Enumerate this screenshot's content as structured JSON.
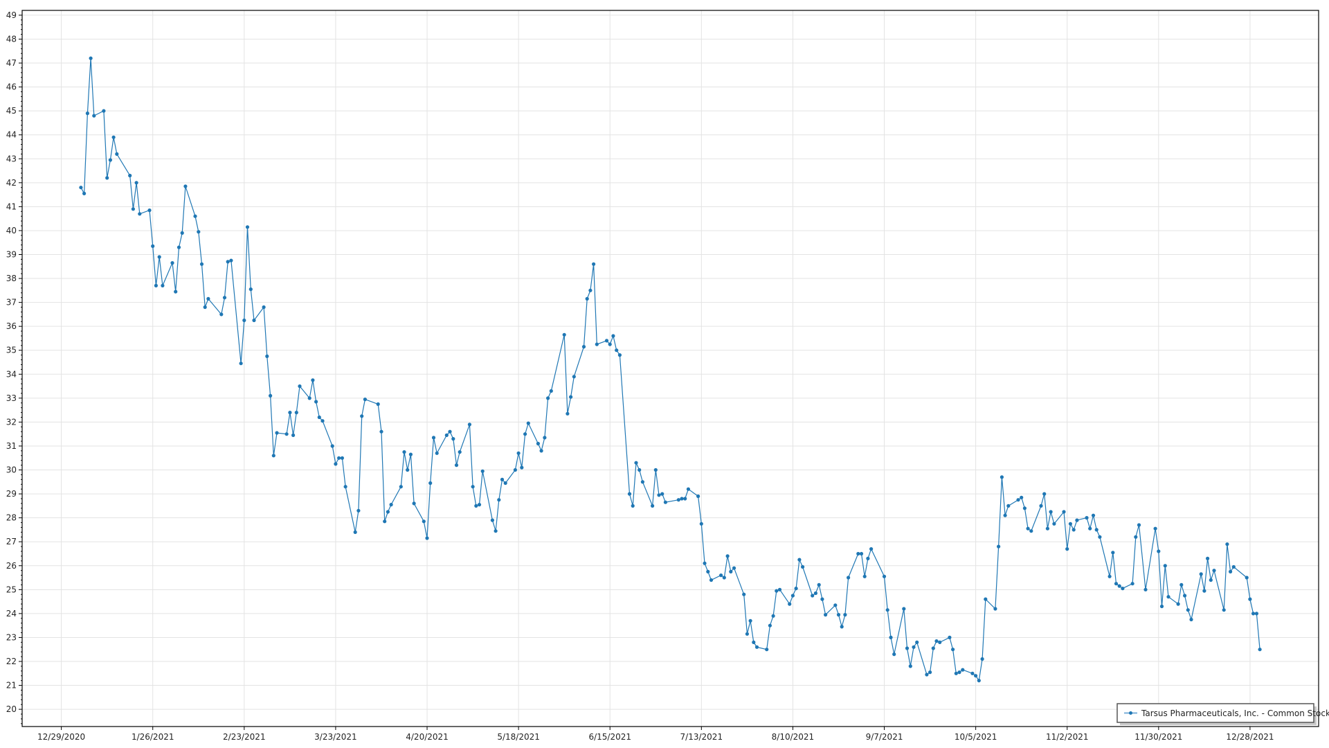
{
  "chart_data": {
    "type": "line",
    "title": "",
    "xlabel": "",
    "ylabel": "",
    "grid": true,
    "legend_position": "bottom-right",
    "xlim": [
      "2020-12-17",
      "2022-01-18"
    ],
    "ylim": [
      19.28,
      49.2
    ],
    "x_ticks": [
      "12/29/2020",
      "1/26/2021",
      "2/23/2021",
      "3/23/2021",
      "4/20/2021",
      "5/18/2021",
      "6/15/2021",
      "7/13/2021",
      "8/10/2021",
      "9/7/2021",
      "10/5/2021",
      "11/2/2021",
      "11/30/2021",
      "12/28/2021"
    ],
    "y_ticks": [
      20,
      21,
      22,
      23,
      24,
      25,
      26,
      27,
      28,
      29,
      30,
      31,
      32,
      33,
      34,
      35,
      36,
      37,
      38,
      39,
      40,
      41,
      42,
      43,
      44,
      45,
      46,
      47,
      48,
      49
    ],
    "colors": {
      "series": "#1f77b4",
      "grid": "#e3e3e3",
      "axis": "#000000"
    },
    "series": [
      {
        "name": "Tarsus Pharmaceuticals, Inc. - Common Stock",
        "marker": "circle",
        "points": [
          [
            "2021-01-04",
            41.8
          ],
          [
            "2021-01-05",
            41.55
          ],
          [
            "2021-01-06",
            44.9
          ],
          [
            "2021-01-07",
            47.2
          ],
          [
            "2021-01-08",
            44.8
          ],
          [
            "2021-01-11",
            45.0
          ],
          [
            "2021-01-12",
            42.2
          ],
          [
            "2021-01-13",
            42.95
          ],
          [
            "2021-01-14",
            43.9
          ],
          [
            "2021-01-15",
            43.2
          ],
          [
            "2021-01-19",
            42.3
          ],
          [
            "2021-01-20",
            40.9
          ],
          [
            "2021-01-21",
            42.0
          ],
          [
            "2021-01-22",
            40.7
          ],
          [
            "2021-01-25",
            40.85
          ],
          [
            "2021-01-26",
            39.35
          ],
          [
            "2021-01-27",
            37.7
          ],
          [
            "2021-01-28",
            38.9
          ],
          [
            "2021-01-29",
            37.7
          ],
          [
            "2021-02-01",
            38.65
          ],
          [
            "2021-02-02",
            37.45
          ],
          [
            "2021-02-03",
            39.3
          ],
          [
            "2021-02-04",
            39.9
          ],
          [
            "2021-02-05",
            41.85
          ],
          [
            "2021-02-08",
            40.6
          ],
          [
            "2021-02-09",
            39.95
          ],
          [
            "2021-02-10",
            38.6
          ],
          [
            "2021-02-11",
            36.8
          ],
          [
            "2021-02-12",
            37.15
          ],
          [
            "2021-02-16",
            36.5
          ],
          [
            "2021-02-17",
            37.2
          ],
          [
            "2021-02-18",
            38.7
          ],
          [
            "2021-02-19",
            38.75
          ],
          [
            "2021-02-22",
            34.45
          ],
          [
            "2021-02-23",
            36.25
          ],
          [
            "2021-02-24",
            40.15
          ],
          [
            "2021-02-25",
            37.55
          ],
          [
            "2021-02-26",
            36.25
          ],
          [
            "2021-03-01",
            36.8
          ],
          [
            "2021-03-02",
            34.75
          ],
          [
            "2021-03-03",
            33.1
          ],
          [
            "2021-03-04",
            30.6
          ],
          [
            "2021-03-05",
            31.55
          ],
          [
            "2021-03-08",
            31.5
          ],
          [
            "2021-03-09",
            32.4
          ],
          [
            "2021-03-10",
            31.45
          ],
          [
            "2021-03-11",
            32.4
          ],
          [
            "2021-03-12",
            33.5
          ],
          [
            "2021-03-15",
            33.0
          ],
          [
            "2021-03-16",
            33.75
          ],
          [
            "2021-03-17",
            32.85
          ],
          [
            "2021-03-18",
            32.2
          ],
          [
            "2021-03-19",
            32.05
          ],
          [
            "2021-03-22",
            31.0
          ],
          [
            "2021-03-23",
            30.25
          ],
          [
            "2021-03-24",
            30.5
          ],
          [
            "2021-03-25",
            30.5
          ],
          [
            "2021-03-26",
            29.3
          ],
          [
            "2021-03-29",
            27.4
          ],
          [
            "2021-03-30",
            28.3
          ],
          [
            "2021-03-31",
            32.25
          ],
          [
            "2021-04-01",
            32.95
          ],
          [
            "2021-04-05",
            32.75
          ],
          [
            "2021-04-06",
            31.6
          ],
          [
            "2021-04-07",
            27.85
          ],
          [
            "2021-04-08",
            28.25
          ],
          [
            "2021-04-09",
            28.55
          ],
          [
            "2021-04-12",
            29.3
          ],
          [
            "2021-04-13",
            30.75
          ],
          [
            "2021-04-14",
            30.0
          ],
          [
            "2021-04-15",
            30.65
          ],
          [
            "2021-04-16",
            28.6
          ],
          [
            "2021-04-19",
            27.85
          ],
          [
            "2021-04-20",
            27.15
          ],
          [
            "2021-04-21",
            29.45
          ],
          [
            "2021-04-22",
            31.35
          ],
          [
            "2021-04-23",
            30.7
          ],
          [
            "2021-04-26",
            31.45
          ],
          [
            "2021-04-27",
            31.6
          ],
          [
            "2021-04-28",
            31.3
          ],
          [
            "2021-04-29",
            30.2
          ],
          [
            "2021-04-30",
            30.75
          ],
          [
            "2021-05-03",
            31.9
          ],
          [
            "2021-05-04",
            29.3
          ],
          [
            "2021-05-05",
            28.5
          ],
          [
            "2021-05-06",
            28.55
          ],
          [
            "2021-05-07",
            29.95
          ],
          [
            "2021-05-10",
            27.9
          ],
          [
            "2021-05-11",
            27.45
          ],
          [
            "2021-05-12",
            28.75
          ],
          [
            "2021-05-13",
            29.6
          ],
          [
            "2021-05-14",
            29.45
          ],
          [
            "2021-05-17",
            30.0
          ],
          [
            "2021-05-18",
            30.7
          ],
          [
            "2021-05-19",
            30.1
          ],
          [
            "2021-05-20",
            31.5
          ],
          [
            "2021-05-21",
            31.95
          ],
          [
            "2021-05-24",
            31.1
          ],
          [
            "2021-05-25",
            30.8
          ],
          [
            "2021-05-26",
            31.35
          ],
          [
            "2021-05-27",
            33.0
          ],
          [
            "2021-05-28",
            33.3
          ],
          [
            "2021-06-01",
            35.65
          ],
          [
            "2021-06-02",
            32.35
          ],
          [
            "2021-06-03",
            33.05
          ],
          [
            "2021-06-04",
            33.9
          ],
          [
            "2021-06-07",
            35.15
          ],
          [
            "2021-06-08",
            37.15
          ],
          [
            "2021-06-09",
            37.5
          ],
          [
            "2021-06-10",
            38.6
          ],
          [
            "2021-06-11",
            35.25
          ],
          [
            "2021-06-14",
            35.4
          ],
          [
            "2021-06-15",
            35.25
          ],
          [
            "2021-06-16",
            35.6
          ],
          [
            "2021-06-17",
            35.0
          ],
          [
            "2021-06-18",
            34.8
          ],
          [
            "2021-06-21",
            29.0
          ],
          [
            "2021-06-22",
            28.5
          ],
          [
            "2021-06-23",
            30.3
          ],
          [
            "2021-06-24",
            30.0
          ],
          [
            "2021-06-25",
            29.5
          ],
          [
            "2021-06-28",
            28.5
          ],
          [
            "2021-06-29",
            30.0
          ],
          [
            "2021-06-30",
            28.95
          ],
          [
            "2021-07-01",
            29.0
          ],
          [
            "2021-07-02",
            28.65
          ],
          [
            "2021-07-06",
            28.75
          ],
          [
            "2021-07-07",
            28.8
          ],
          [
            "2021-07-08",
            28.8
          ],
          [
            "2021-07-09",
            29.2
          ],
          [
            "2021-07-12",
            28.9
          ],
          [
            "2021-07-13",
            27.75
          ],
          [
            "2021-07-14",
            26.1
          ],
          [
            "2021-07-15",
            25.75
          ],
          [
            "2021-07-16",
            25.4
          ],
          [
            "2021-07-19",
            25.6
          ],
          [
            "2021-07-20",
            25.5
          ],
          [
            "2021-07-21",
            26.4
          ],
          [
            "2021-07-22",
            25.75
          ],
          [
            "2021-07-23",
            25.9
          ],
          [
            "2021-07-26",
            24.8
          ],
          [
            "2021-07-27",
            23.15
          ],
          [
            "2021-07-28",
            23.7
          ],
          [
            "2021-07-29",
            22.8
          ],
          [
            "2021-07-30",
            22.6
          ],
          [
            "2021-08-02",
            22.5
          ],
          [
            "2021-08-03",
            23.5
          ],
          [
            "2021-08-04",
            23.9
          ],
          [
            "2021-08-05",
            24.95
          ],
          [
            "2021-08-06",
            25.0
          ],
          [
            "2021-08-09",
            24.4
          ],
          [
            "2021-08-10",
            24.75
          ],
          [
            "2021-08-11",
            25.05
          ],
          [
            "2021-08-12",
            26.25
          ],
          [
            "2021-08-13",
            25.95
          ],
          [
            "2021-08-16",
            24.75
          ],
          [
            "2021-08-17",
            24.85
          ],
          [
            "2021-08-18",
            25.2
          ],
          [
            "2021-08-19",
            24.6
          ],
          [
            "2021-08-20",
            23.95
          ],
          [
            "2021-08-23",
            24.35
          ],
          [
            "2021-08-24",
            23.95
          ],
          [
            "2021-08-25",
            23.45
          ],
          [
            "2021-08-26",
            23.95
          ],
          [
            "2021-08-27",
            25.5
          ],
          [
            "2021-08-30",
            26.5
          ],
          [
            "2021-08-31",
            26.5
          ],
          [
            "2021-09-01",
            25.55
          ],
          [
            "2021-09-02",
            26.3
          ],
          [
            "2021-09-03",
            26.7
          ],
          [
            "2021-09-07",
            25.55
          ],
          [
            "2021-09-08",
            24.15
          ],
          [
            "2021-09-09",
            23.0
          ],
          [
            "2021-09-10",
            22.3
          ],
          [
            "2021-09-13",
            24.2
          ],
          [
            "2021-09-14",
            22.55
          ],
          [
            "2021-09-15",
            21.8
          ],
          [
            "2021-09-16",
            22.6
          ],
          [
            "2021-09-17",
            22.8
          ],
          [
            "2021-09-20",
            21.45
          ],
          [
            "2021-09-21",
            21.55
          ],
          [
            "2021-09-22",
            22.55
          ],
          [
            "2021-09-23",
            22.85
          ],
          [
            "2021-09-24",
            22.8
          ],
          [
            "2021-09-27",
            23.0
          ],
          [
            "2021-09-28",
            22.5
          ],
          [
            "2021-09-29",
            21.5
          ],
          [
            "2021-09-30",
            21.55
          ],
          [
            "2021-10-01",
            21.65
          ],
          [
            "2021-10-04",
            21.5
          ],
          [
            "2021-10-05",
            21.4
          ],
          [
            "2021-10-06",
            21.2
          ],
          [
            "2021-10-07",
            22.1
          ],
          [
            "2021-10-08",
            24.6
          ],
          [
            "2021-10-11",
            24.2
          ],
          [
            "2021-10-12",
            26.8
          ],
          [
            "2021-10-13",
            29.7
          ],
          [
            "2021-10-14",
            28.1
          ],
          [
            "2021-10-15",
            28.5
          ],
          [
            "2021-10-18",
            28.75
          ],
          [
            "2021-10-19",
            28.85
          ],
          [
            "2021-10-20",
            28.4
          ],
          [
            "2021-10-21",
            27.55
          ],
          [
            "2021-10-22",
            27.45
          ],
          [
            "2021-10-25",
            28.5
          ],
          [
            "2021-10-26",
            29.0
          ],
          [
            "2021-10-27",
            27.55
          ],
          [
            "2021-10-28",
            28.25
          ],
          [
            "2021-10-29",
            27.75
          ],
          [
            "2021-11-01",
            28.25
          ],
          [
            "2021-11-02",
            26.7
          ],
          [
            "2021-11-03",
            27.75
          ],
          [
            "2021-11-04",
            27.5
          ],
          [
            "2021-11-05",
            27.9
          ],
          [
            "2021-11-08",
            28.0
          ],
          [
            "2021-11-09",
            27.55
          ],
          [
            "2021-11-10",
            28.1
          ],
          [
            "2021-11-11",
            27.5
          ],
          [
            "2021-11-12",
            27.2
          ],
          [
            "2021-11-15",
            25.55
          ],
          [
            "2021-11-16",
            26.55
          ],
          [
            "2021-11-17",
            25.25
          ],
          [
            "2021-11-18",
            25.15
          ],
          [
            "2021-11-19",
            25.05
          ],
          [
            "2021-11-22",
            25.25
          ],
          [
            "2021-11-23",
            27.2
          ],
          [
            "2021-11-24",
            27.7
          ],
          [
            "2021-11-26",
            25.0
          ],
          [
            "2021-11-29",
            27.55
          ],
          [
            "2021-11-30",
            26.6
          ],
          [
            "2021-12-01",
            24.3
          ],
          [
            "2021-12-02",
            26.0
          ],
          [
            "2021-12-03",
            24.7
          ],
          [
            "2021-12-06",
            24.4
          ],
          [
            "2021-12-07",
            25.2
          ],
          [
            "2021-12-08",
            24.75
          ],
          [
            "2021-12-09",
            24.15
          ],
          [
            "2021-12-10",
            23.75
          ],
          [
            "2021-12-13",
            25.65
          ],
          [
            "2021-12-14",
            24.95
          ],
          [
            "2021-12-15",
            26.3
          ],
          [
            "2021-12-16",
            25.4
          ],
          [
            "2021-12-17",
            25.8
          ],
          [
            "2021-12-20",
            24.15
          ],
          [
            "2021-12-21",
            26.9
          ],
          [
            "2021-12-22",
            25.75
          ],
          [
            "2021-12-23",
            25.95
          ],
          [
            "2021-12-27",
            25.5
          ],
          [
            "2021-12-28",
            24.6
          ],
          [
            "2021-12-29",
            24.0
          ],
          [
            "2021-12-30",
            24.0
          ],
          [
            "2021-12-31",
            22.5
          ]
        ]
      }
    ]
  },
  "legend": {
    "label": "Tarsus Pharmaceuticals, Inc. - Common Stock"
  }
}
